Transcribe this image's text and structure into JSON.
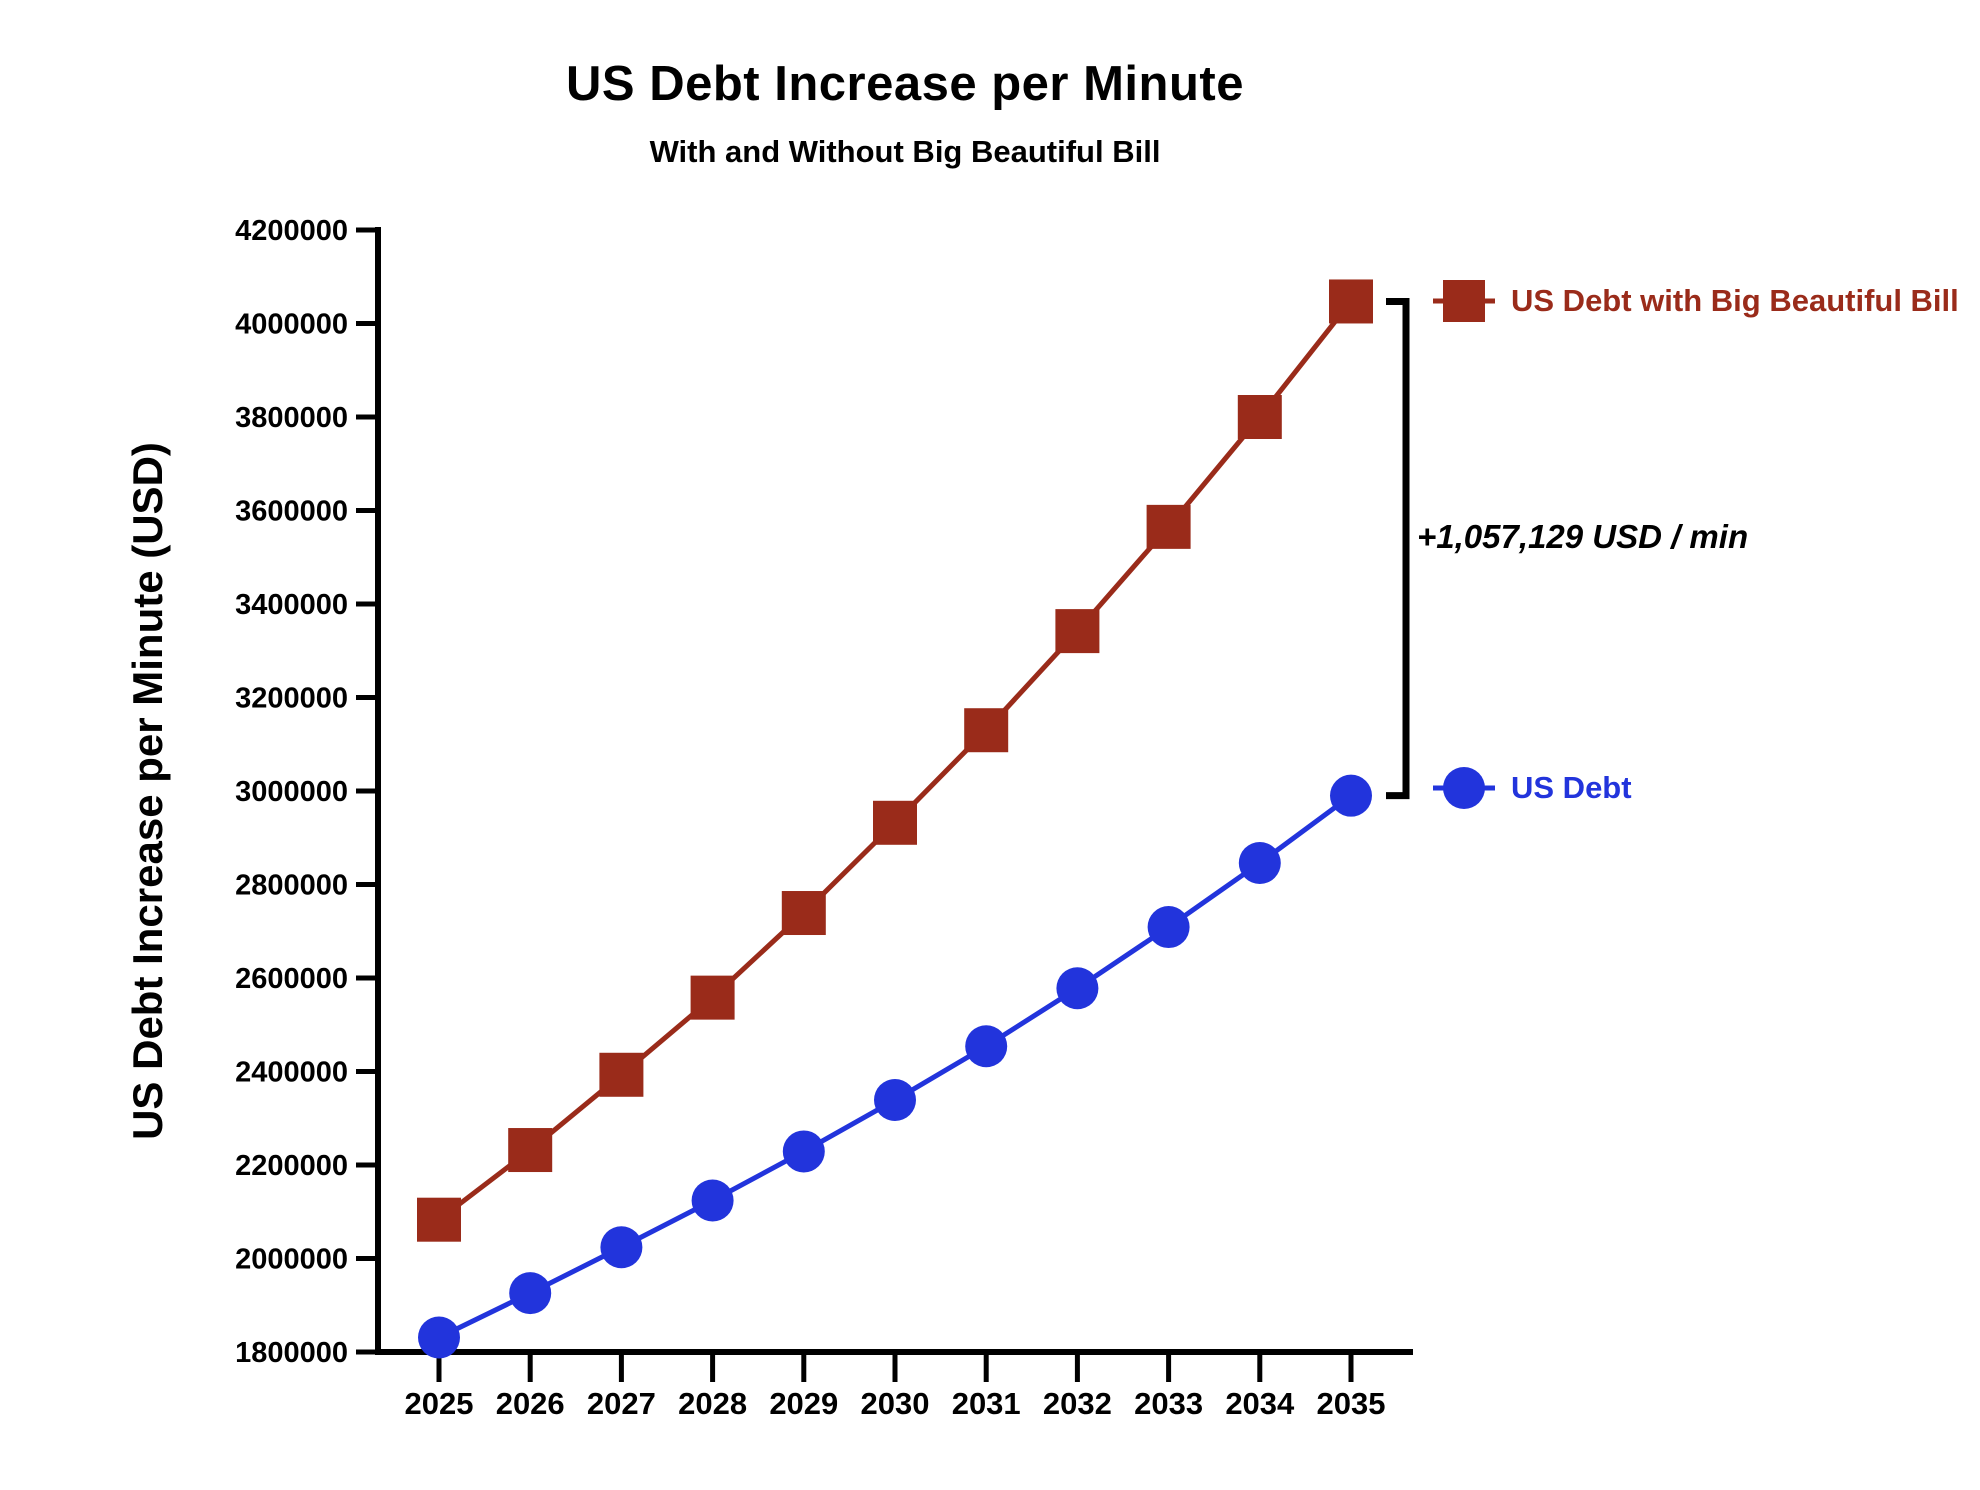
{
  "header": {
    "title": "US Debt Increase per Minute",
    "subtitle": "With and Without Big Beautiful Bill"
  },
  "colors": {
    "with_bill": "#9A2B1A",
    "without_bill": "#2234DC",
    "axis": "#000000",
    "annotation_bracket": "#000000",
    "background": "#FFFFFF"
  },
  "legend": {
    "items": [
      {
        "label": "US Debt with Big Beautiful Bill",
        "marker": "square",
        "color": "#9A2B1A"
      },
      {
        "label": "US Debt",
        "marker": "circle",
        "color": "#2234DC"
      }
    ]
  },
  "chart_data": {
    "type": "line",
    "title": "US Debt Increase per Minute",
    "subtitle": "With and Without Big Beautiful Bill",
    "xlabel": "",
    "ylabel": "US Debt Increase per Minute (USD)",
    "x": [
      2025,
      2026,
      2027,
      2028,
      2029,
      2030,
      2031,
      2032,
      2033,
      2034,
      2035
    ],
    "series": [
      {
        "name": "US Debt with Big Beautiful Bill",
        "marker": "square",
        "color": "#9A2B1A",
        "values": [
          2083000,
          2232000,
          2393000,
          2558000,
          2739000,
          2932000,
          3130000,
          3342000,
          3565000,
          3800000,
          4047129
        ]
      },
      {
        "name": "US Debt",
        "marker": "circle",
        "color": "#2234DC",
        "values": [
          1831000,
          1926000,
          2024000,
          2124000,
          2229000,
          2339000,
          2454000,
          2578000,
          2709000,
          2846000,
          2990000
        ]
      }
    ],
    "ylim": [
      1800000,
      4200000
    ],
    "ytick_step": 200000,
    "yticks": [
      1800000,
      2000000,
      2200000,
      2400000,
      2600000,
      2800000,
      3000000,
      3200000,
      3400000,
      3600000,
      3800000,
      4000000,
      4200000
    ],
    "grid": false,
    "legend_position": "right-outside",
    "annotation": {
      "text": "+1,057,129 USD / min",
      "x": 2035,
      "between_series": true
    }
  }
}
